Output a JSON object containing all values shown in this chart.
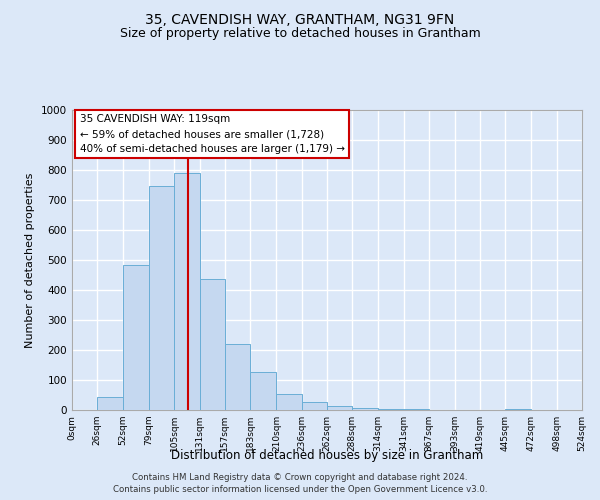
{
  "title": "35, CAVENDISH WAY, GRANTHAM, NG31 9FN",
  "subtitle": "Size of property relative to detached houses in Grantham",
  "ylabel": "Number of detached properties",
  "xlabel": "Distribution of detached houses by size in Grantham",
  "footer_line1": "Contains HM Land Registry data © Crown copyright and database right 2024.",
  "footer_line2": "Contains public sector information licensed under the Open Government Licence v3.0.",
  "bin_edges": [
    0,
    26,
    52,
    79,
    105,
    131,
    157,
    183,
    210,
    236,
    262,
    288,
    314,
    341,
    367,
    393,
    419,
    445,
    472,
    498,
    524
  ],
  "bin_labels": [
    "0sqm",
    "26sqm",
    "52sqm",
    "79sqm",
    "105sqm",
    "131sqm",
    "157sqm",
    "183sqm",
    "210sqm",
    "236sqm",
    "262sqm",
    "288sqm",
    "314sqm",
    "341sqm",
    "367sqm",
    "393sqm",
    "419sqm",
    "445sqm",
    "472sqm",
    "498sqm",
    "524sqm"
  ],
  "counts": [
    0,
    42,
    485,
    748,
    790,
    437,
    220,
    127,
    52,
    27,
    15,
    8,
    3,
    2,
    1,
    0,
    0,
    5,
    0,
    0
  ],
  "bar_color": "#c5d8f0",
  "bar_edge_color": "#6aaed6",
  "vline_x": 119,
  "vline_color": "#cc0000",
  "annotation_text": "35 CAVENDISH WAY: 119sqm\n← 59% of detached houses are smaller (1,728)\n40% of semi-detached houses are larger (1,179) →",
  "annotation_box_color": "#cc0000",
  "ylim": [
    0,
    1000
  ],
  "yticks": [
    0,
    100,
    200,
    300,
    400,
    500,
    600,
    700,
    800,
    900,
    1000
  ],
  "bg_color": "#dce8f8",
  "plot_bg_color": "#dce8f8",
  "grid_color": "#ffffff",
  "title_fontsize": 10,
  "subtitle_fontsize": 9
}
